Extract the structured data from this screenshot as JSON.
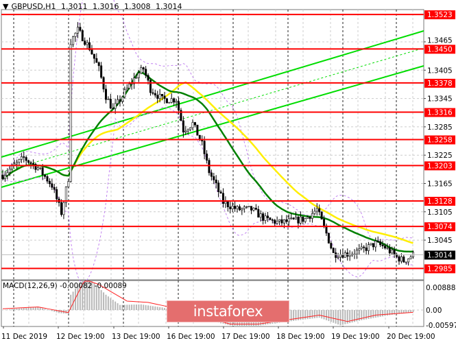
{
  "header": {
    "symbol": "GBPUSD,H1",
    "open": "1.3011",
    "high": "1.3016",
    "low": "1.3008",
    "close": "1.3014"
  },
  "watermark": "instaforex",
  "chart_data": {
    "type": "candlestick",
    "symbol": "GBPUSD",
    "timeframe": "H1",
    "ylim": [
      1.2955,
      1.3585
    ],
    "price_ticks": [
      "1.3465",
      "1.3405",
      "1.3345",
      "1.3285",
      "1.3225",
      "1.3165",
      "1.3105",
      "1.3045"
    ],
    "current_price": "1.3014",
    "levels": [
      "1.3523",
      "1.3450",
      "1.3378",
      "1.3316",
      "1.3258",
      "1.3203",
      "1.3128",
      "1.3074",
      "1.2985"
    ],
    "time_labels": [
      "11 Dec 2019",
      "12 Dec 19:00",
      "13 Dec 19:00",
      "16 Dec 19:00",
      "17 Dec 19:00",
      "18 Dec 19:00",
      "19 Dec 19:00",
      "20 Dec 19:00"
    ],
    "price_path": [
      [
        0,
        1.3183
      ],
      [
        9,
        1.3219
      ],
      [
        15,
        1.3198
      ],
      [
        21,
        1.3161
      ],
      [
        25,
        1.3103
      ],
      [
        28,
        1.3176
      ],
      [
        29,
        1.3466
      ],
      [
        32,
        1.349
      ],
      [
        37,
        1.3452
      ],
      [
        41,
        1.3408
      ],
      [
        44,
        1.335
      ],
      [
        47,
        1.3321
      ],
      [
        51,
        1.335
      ],
      [
        57,
        1.3394
      ],
      [
        60,
        1.3408
      ],
      [
        63,
        1.3365
      ],
      [
        68,
        1.3343
      ],
      [
        74,
        1.3343
      ],
      [
        77,
        1.3278
      ],
      [
        81,
        1.3292
      ],
      [
        85,
        1.3248
      ],
      [
        88,
        1.319
      ],
      [
        91,
        1.316
      ],
      [
        94,
        1.3125
      ],
      [
        100,
        1.311
      ],
      [
        106,
        1.311
      ],
      [
        112,
        1.3089
      ],
      [
        118,
        1.3082
      ],
      [
        124,
        1.3086
      ],
      [
        129,
        1.309
      ],
      [
        134,
        1.311
      ],
      [
        138,
        1.3059
      ],
      [
        141,
        1.3016
      ],
      [
        147,
        1.3016
      ],
      [
        153,
        1.3023
      ],
      [
        159,
        1.3038
      ],
      [
        163,
        1.303
      ],
      [
        168,
        1.3009
      ],
      [
        171,
        1.3001
      ],
      [
        175,
        1.3014
      ]
    ],
    "channel": {
      "color": "#00dd00"
    },
    "ma_fast_color": "#008000",
    "ma_slow_color": "#ffee00",
    "bands_color": "#c080f0",
    "level_color": "#ff0000",
    "macd": {
      "label": "MACD(12,26,9)",
      "value": "-0.00082",
      "signal": "-0.00089",
      "ticks": [
        "0.00888",
        "0.00",
        "-0.00597"
      ],
      "histogram": [
        [
          0,
          0.0
        ],
        [
          9,
          0.0008
        ],
        [
          15,
          0.0012
        ],
        [
          24,
          -0.0012
        ],
        [
          28,
          -0.0015
        ],
        [
          29,
          0.006
        ],
        [
          34,
          0.012
        ],
        [
          38,
          0.0115
        ],
        [
          44,
          0.006
        ],
        [
          50,
          0.002
        ],
        [
          59,
          0.0022
        ],
        [
          68,
          0.001
        ],
        [
          77,
          -0.001
        ],
        [
          88,
          -0.004
        ],
        [
          97,
          -0.006
        ],
        [
          106,
          -0.0065
        ],
        [
          118,
          -0.005
        ],
        [
          126,
          -0.004
        ],
        [
          135,
          -0.003
        ],
        [
          144,
          -0.006
        ],
        [
          153,
          -0.004
        ],
        [
          165,
          -0.002
        ],
        [
          175,
          -0.0008
        ]
      ],
      "signal_line": [
        [
          0,
          0.0005
        ],
        [
          15,
          0.0012
        ],
        [
          28,
          -0.001
        ],
        [
          35,
          0.012
        ],
        [
          41,
          0.01
        ],
        [
          53,
          0.0035
        ],
        [
          62,
          0.003
        ],
        [
          77,
          0.0
        ],
        [
          91,
          -0.004
        ],
        [
          97,
          -0.0055
        ],
        [
          109,
          -0.0055
        ],
        [
          124,
          -0.0035
        ],
        [
          135,
          -0.002
        ],
        [
          147,
          -0.0045
        ],
        [
          159,
          -0.002
        ],
        [
          175,
          -0.0009
        ]
      ]
    }
  }
}
